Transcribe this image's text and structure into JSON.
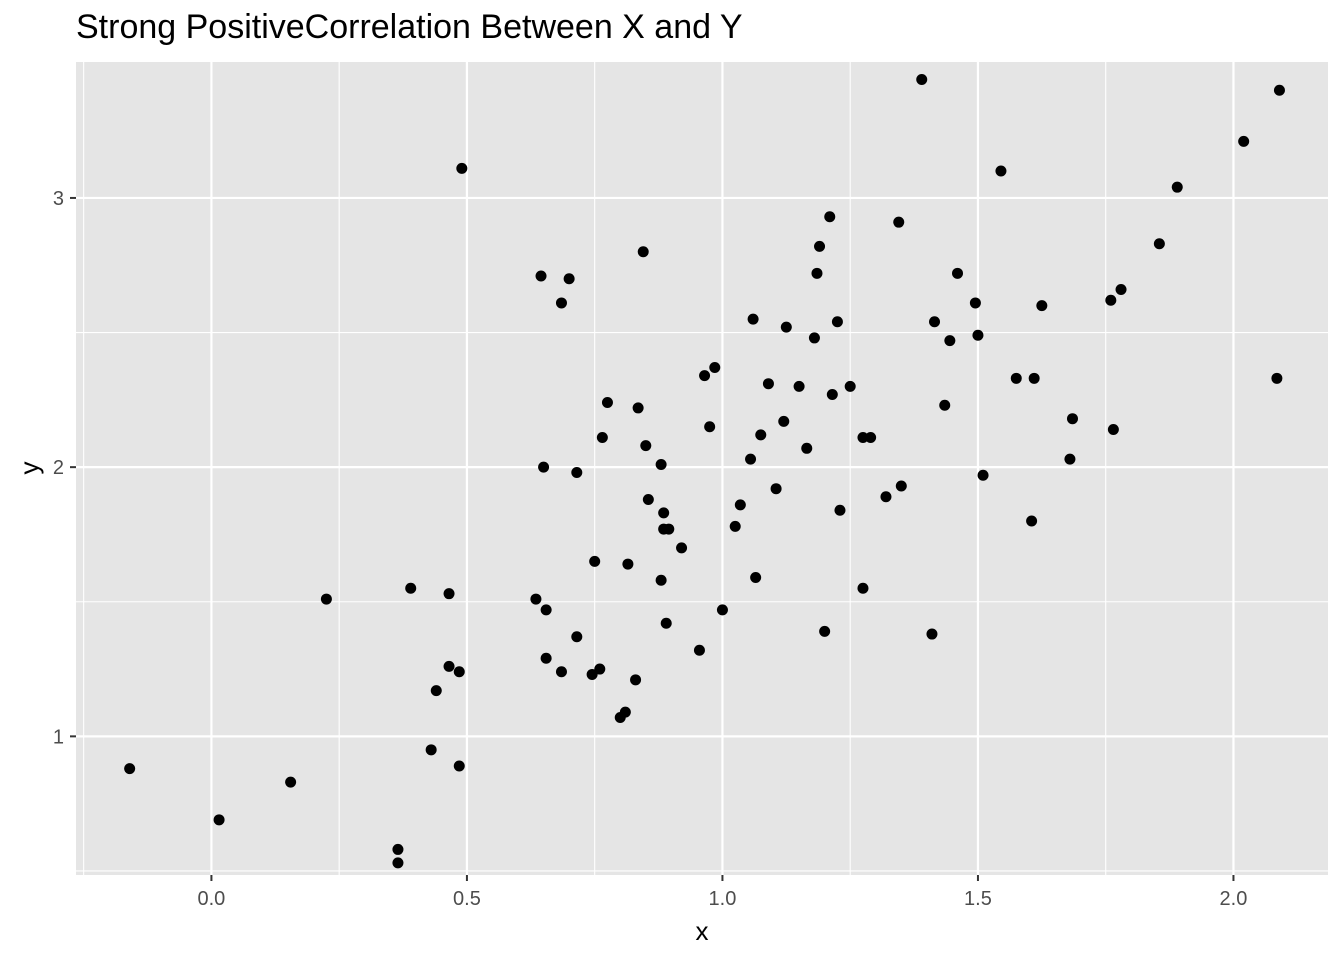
{
  "chart_data": {
    "type": "scatter",
    "title": "Strong PositiveCorrelation Between X and Y",
    "xlabel": "x",
    "ylabel": "y",
    "xlim": [
      -0.265,
      2.185
    ],
    "ylim": [
      0.485,
      3.505
    ],
    "x_ticks": [
      0.0,
      0.5,
      1.0,
      1.5,
      2.0
    ],
    "x_tick_labels": [
      "0.0",
      "0.5",
      "1.0",
      "1.5",
      "2.0"
    ],
    "y_ticks": [
      1,
      2,
      3
    ],
    "y_tick_labels": [
      "1",
      "2",
      "3"
    ],
    "x_minor_ticks": [
      -0.25,
      0.25,
      0.75,
      1.25,
      1.75
    ],
    "y_minor_ticks": [
      0.5,
      1.5,
      2.5
    ],
    "grid": true,
    "colors": {
      "panel": "#e5e5e5",
      "grid": "#ffffff",
      "point": "#000000",
      "text": "#4d4d4d"
    },
    "points": [
      {
        "x": -0.16,
        "y": 0.88
      },
      {
        "x": 0.015,
        "y": 0.69
      },
      {
        "x": 0.155,
        "y": 0.83
      },
      {
        "x": 0.225,
        "y": 1.51
      },
      {
        "x": 0.365,
        "y": 0.58
      },
      {
        "x": 0.365,
        "y": 0.53
      },
      {
        "x": 0.39,
        "y": 1.55
      },
      {
        "x": 0.43,
        "y": 0.95
      },
      {
        "x": 0.44,
        "y": 1.17
      },
      {
        "x": 0.465,
        "y": 1.53
      },
      {
        "x": 0.465,
        "y": 1.26
      },
      {
        "x": 0.485,
        "y": 1.24
      },
      {
        "x": 0.485,
        "y": 0.89
      },
      {
        "x": 0.49,
        "y": 3.11
      },
      {
        "x": 0.635,
        "y": 1.51
      },
      {
        "x": 0.645,
        "y": 2.71
      },
      {
        "x": 0.65,
        "y": 2.0
      },
      {
        "x": 0.655,
        "y": 1.47
      },
      {
        "x": 0.655,
        "y": 1.29
      },
      {
        "x": 0.685,
        "y": 2.61
      },
      {
        "x": 0.685,
        "y": 1.24
      },
      {
        "x": 0.7,
        "y": 2.7
      },
      {
        "x": 0.715,
        "y": 1.98
      },
      {
        "x": 0.715,
        "y": 1.37
      },
      {
        "x": 0.745,
        "y": 1.23
      },
      {
        "x": 0.75,
        "y": 1.65
      },
      {
        "x": 0.76,
        "y": 1.25
      },
      {
        "x": 0.765,
        "y": 2.11
      },
      {
        "x": 0.775,
        "y": 2.24
      },
      {
        "x": 0.8,
        "y": 1.07
      },
      {
        "x": 0.81,
        "y": 1.09
      },
      {
        "x": 0.815,
        "y": 1.64
      },
      {
        "x": 0.83,
        "y": 1.21
      },
      {
        "x": 0.835,
        "y": 2.22
      },
      {
        "x": 0.845,
        "y": 2.8
      },
      {
        "x": 0.85,
        "y": 2.08
      },
      {
        "x": 0.855,
        "y": 1.88
      },
      {
        "x": 0.88,
        "y": 2.01
      },
      {
        "x": 0.88,
        "y": 1.58
      },
      {
        "x": 0.885,
        "y": 1.83
      },
      {
        "x": 0.885,
        "y": 1.77
      },
      {
        "x": 0.89,
        "y": 1.42
      },
      {
        "x": 0.895,
        "y": 1.77
      },
      {
        "x": 0.92,
        "y": 1.7
      },
      {
        "x": 0.955,
        "y": 1.32
      },
      {
        "x": 0.965,
        "y": 2.34
      },
      {
        "x": 0.975,
        "y": 2.15
      },
      {
        "x": 0.985,
        "y": 2.37
      },
      {
        "x": 1.0,
        "y": 1.47
      },
      {
        "x": 1.025,
        "y": 1.78
      },
      {
        "x": 1.035,
        "y": 1.86
      },
      {
        "x": 1.055,
        "y": 2.03
      },
      {
        "x": 1.06,
        "y": 2.55
      },
      {
        "x": 1.065,
        "y": 1.59
      },
      {
        "x": 1.075,
        "y": 2.12
      },
      {
        "x": 1.09,
        "y": 2.31
      },
      {
        "x": 1.105,
        "y": 1.92
      },
      {
        "x": 1.12,
        "y": 2.17
      },
      {
        "x": 1.125,
        "y": 2.52
      },
      {
        "x": 1.15,
        "y": 2.3
      },
      {
        "x": 1.165,
        "y": 2.07
      },
      {
        "x": 1.18,
        "y": 2.48
      },
      {
        "x": 1.185,
        "y": 2.72
      },
      {
        "x": 1.19,
        "y": 2.82
      },
      {
        "x": 1.2,
        "y": 1.39
      },
      {
        "x": 1.21,
        "y": 2.93
      },
      {
        "x": 1.215,
        "y": 2.27
      },
      {
        "x": 1.225,
        "y": 2.54
      },
      {
        "x": 1.23,
        "y": 1.84
      },
      {
        "x": 1.25,
        "y": 2.3
      },
      {
        "x": 1.275,
        "y": 1.55
      },
      {
        "x": 1.275,
        "y": 2.11
      },
      {
        "x": 1.29,
        "y": 2.11
      },
      {
        "x": 1.32,
        "y": 1.89
      },
      {
        "x": 1.345,
        "y": 2.91
      },
      {
        "x": 1.35,
        "y": 1.93
      },
      {
        "x": 1.39,
        "y": 3.44
      },
      {
        "x": 1.41,
        "y": 1.38
      },
      {
        "x": 1.415,
        "y": 2.54
      },
      {
        "x": 1.435,
        "y": 2.23
      },
      {
        "x": 1.445,
        "y": 2.47
      },
      {
        "x": 1.46,
        "y": 2.72
      },
      {
        "x": 1.495,
        "y": 2.61
      },
      {
        "x": 1.5,
        "y": 2.49
      },
      {
        "x": 1.51,
        "y": 1.97
      },
      {
        "x": 1.545,
        "y": 3.1
      },
      {
        "x": 1.575,
        "y": 2.33
      },
      {
        "x": 1.605,
        "y": 1.8
      },
      {
        "x": 1.61,
        "y": 2.33
      },
      {
        "x": 1.625,
        "y": 2.6
      },
      {
        "x": 1.68,
        "y": 2.03
      },
      {
        "x": 1.685,
        "y": 2.18
      },
      {
        "x": 1.76,
        "y": 2.62
      },
      {
        "x": 1.765,
        "y": 2.14
      },
      {
        "x": 1.78,
        "y": 2.66
      },
      {
        "x": 1.855,
        "y": 2.83
      },
      {
        "x": 1.89,
        "y": 3.04
      },
      {
        "x": 2.02,
        "y": 3.21
      },
      {
        "x": 2.085,
        "y": 2.33
      },
      {
        "x": 2.09,
        "y": 3.4
      }
    ]
  }
}
